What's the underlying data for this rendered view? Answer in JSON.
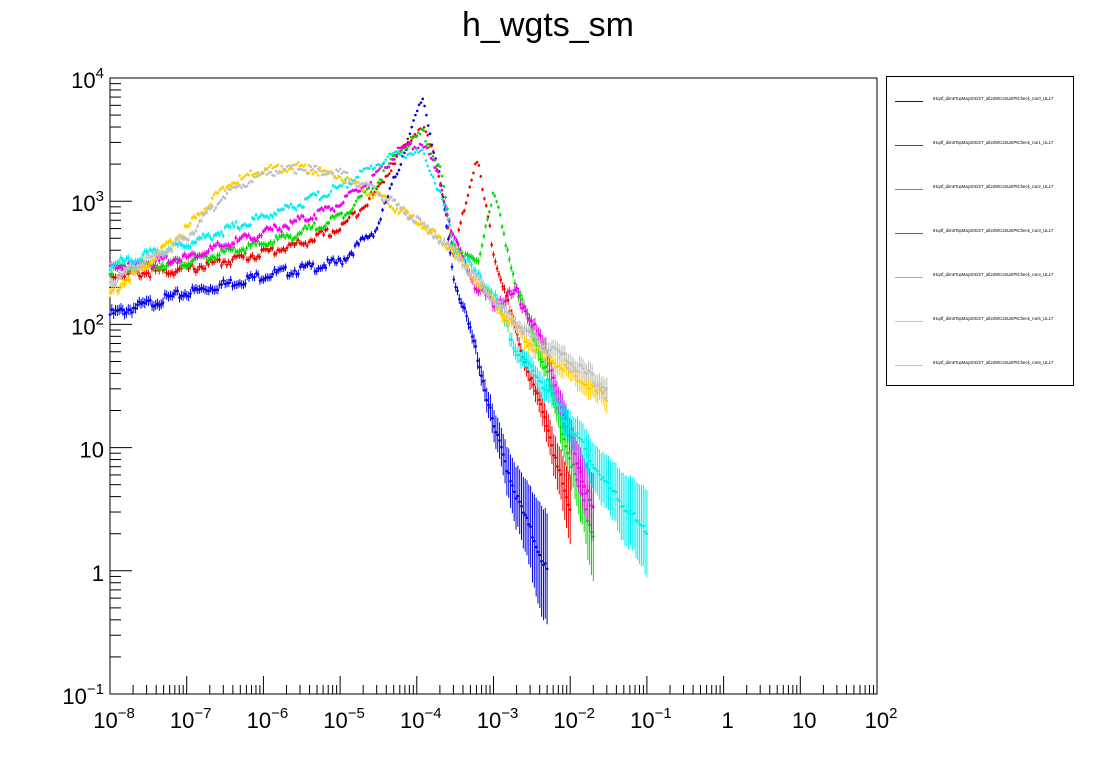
{
  "title": "h_wgts_sm",
  "chart_data": {
    "type": "line",
    "title": "h_wgts_sm",
    "xlabel": "",
    "ylabel": "",
    "x_scale": "log",
    "y_scale": "log",
    "xlim": [
      1e-08,
      100
    ],
    "ylim": [
      0.1,
      10000
    ],
    "x_ticks": [
      "10^-8",
      "10^-7",
      "10^-6",
      "10^-5",
      "10^-4",
      "10^-3",
      "10^-2",
      "10^-1",
      "1",
      "10",
      "10^2"
    ],
    "y_ticks": [
      "10^-1",
      "1",
      "10",
      "10^2",
      "10^3",
      "10^4"
    ],
    "grid": false,
    "legend_position": "right",
    "series": [
      {
        "name": "tHq4f_dim6TopMay20GST_all22WCsStartPtCheck_run0_UL17",
        "color": "#0000ee",
        "x": [
          1e-08,
          1e-07,
          1e-06,
          3e-06,
          1e-05,
          3e-05,
          6e-05,
          0.00012,
          0.0002,
          0.0003,
          0.0006,
          0.001,
          0.002,
          0.005
        ],
        "y": [
          120,
          180,
          250,
          280,
          320,
          600,
          2000,
          7000,
          1500,
          250,
          60,
          15,
          4,
          1
        ]
      },
      {
        "name": "tHq4f_dim6TopMay20GST_all22WCsStartPtCheck_run1_UL17",
        "color": "#ee0000",
        "x": [
          1e-08,
          1e-07,
          1e-06,
          3e-06,
          1e-05,
          3e-05,
          6e-05,
          0.00012,
          0.0002,
          0.0003,
          0.0006,
          0.001,
          0.002,
          0.005,
          0.01
        ],
        "y": [
          250,
          280,
          380,
          450,
          600,
          1200,
          2500,
          4200,
          1600,
          350,
          2300,
          400,
          80,
          15,
          3
        ]
      },
      {
        "name": "tHq4f_dim6TopMay20GST_all22WCsStartPtCheck_run2_UL17",
        "color": "#00dd00",
        "x": [
          1e-08,
          1e-07,
          1e-06,
          3e-06,
          1e-05,
          3e-05,
          6e-05,
          0.00012,
          0.0002,
          0.0003,
          0.0006,
          0.001,
          0.002,
          0.005,
          0.01,
          0.02
        ],
        "y": [
          280,
          320,
          450,
          550,
          750,
          1400,
          2600,
          3600,
          1800,
          450,
          300,
          1200,
          200,
          40,
          8,
          2
        ]
      },
      {
        "name": "tHq4f_dim6TopMay20GST_all22WCsStartPtCheck_run3_UL17",
        "color": "#ee00ee",
        "x": [
          1e-08,
          1e-07,
          1e-06,
          3e-06,
          1e-05,
          3e-05,
          6e-05,
          0.00012,
          0.0002,
          0.0003,
          0.0006,
          0.001,
          0.002,
          0.005,
          0.01,
          0.02
        ],
        "y": [
          290,
          350,
          550,
          700,
          950,
          1600,
          2600,
          3000,
          1500,
          500,
          200,
          150,
          180,
          60,
          12,
          3
        ]
      },
      {
        "name": "tHq4f_dim6TopMay20GST_all22WCsStartPtCheck_run4_UL17",
        "color": "#00eeee",
        "x": [
          1e-08,
          1e-07,
          1e-06,
          3e-06,
          1e-05,
          3e-05,
          6e-05,
          0.00012,
          0.0002,
          0.0003,
          0.0006,
          0.001,
          0.002,
          0.005,
          0.01,
          0.03,
          0.1
        ],
        "y": [
          300,
          450,
          750,
          950,
          1300,
          2000,
          2500,
          2400,
          1200,
          450,
          250,
          180,
          60,
          30,
          15,
          5,
          2
        ]
      },
      {
        "name": "tHq4f_dim6TopMay20GST_all22WCsStartPtCheck_run5_UL17",
        "color": "#ffcc00",
        "x": [
          1e-08,
          3e-08,
          1e-07,
          3e-07,
          1e-06,
          3e-06,
          1e-05,
          3e-05,
          0.0001,
          0.0003,
          0.001,
          0.003,
          0.01,
          0.03
        ],
        "y": [
          180,
          300,
          600,
          1300,
          1800,
          1900,
          1600,
          1100,
          700,
          400,
          150,
          70,
          40,
          25
        ]
      },
      {
        "name": "tHq4f_dim6TopMay20GST_all22WCsStartPtCheck_run6_UL17",
        "color": "#c0c0c0",
        "x": [
          1e-08,
          3e-08,
          1e-07,
          3e-07,
          1e-06,
          3e-06,
          1e-05,
          3e-05,
          0.0001,
          0.0003,
          0.001,
          0.003,
          0.01,
          0.03
        ],
        "y": [
          220,
          330,
          500,
          1100,
          1700,
          1850,
          1700,
          1200,
          700,
          400,
          160,
          80,
          50,
          30
        ]
      }
    ]
  }
}
